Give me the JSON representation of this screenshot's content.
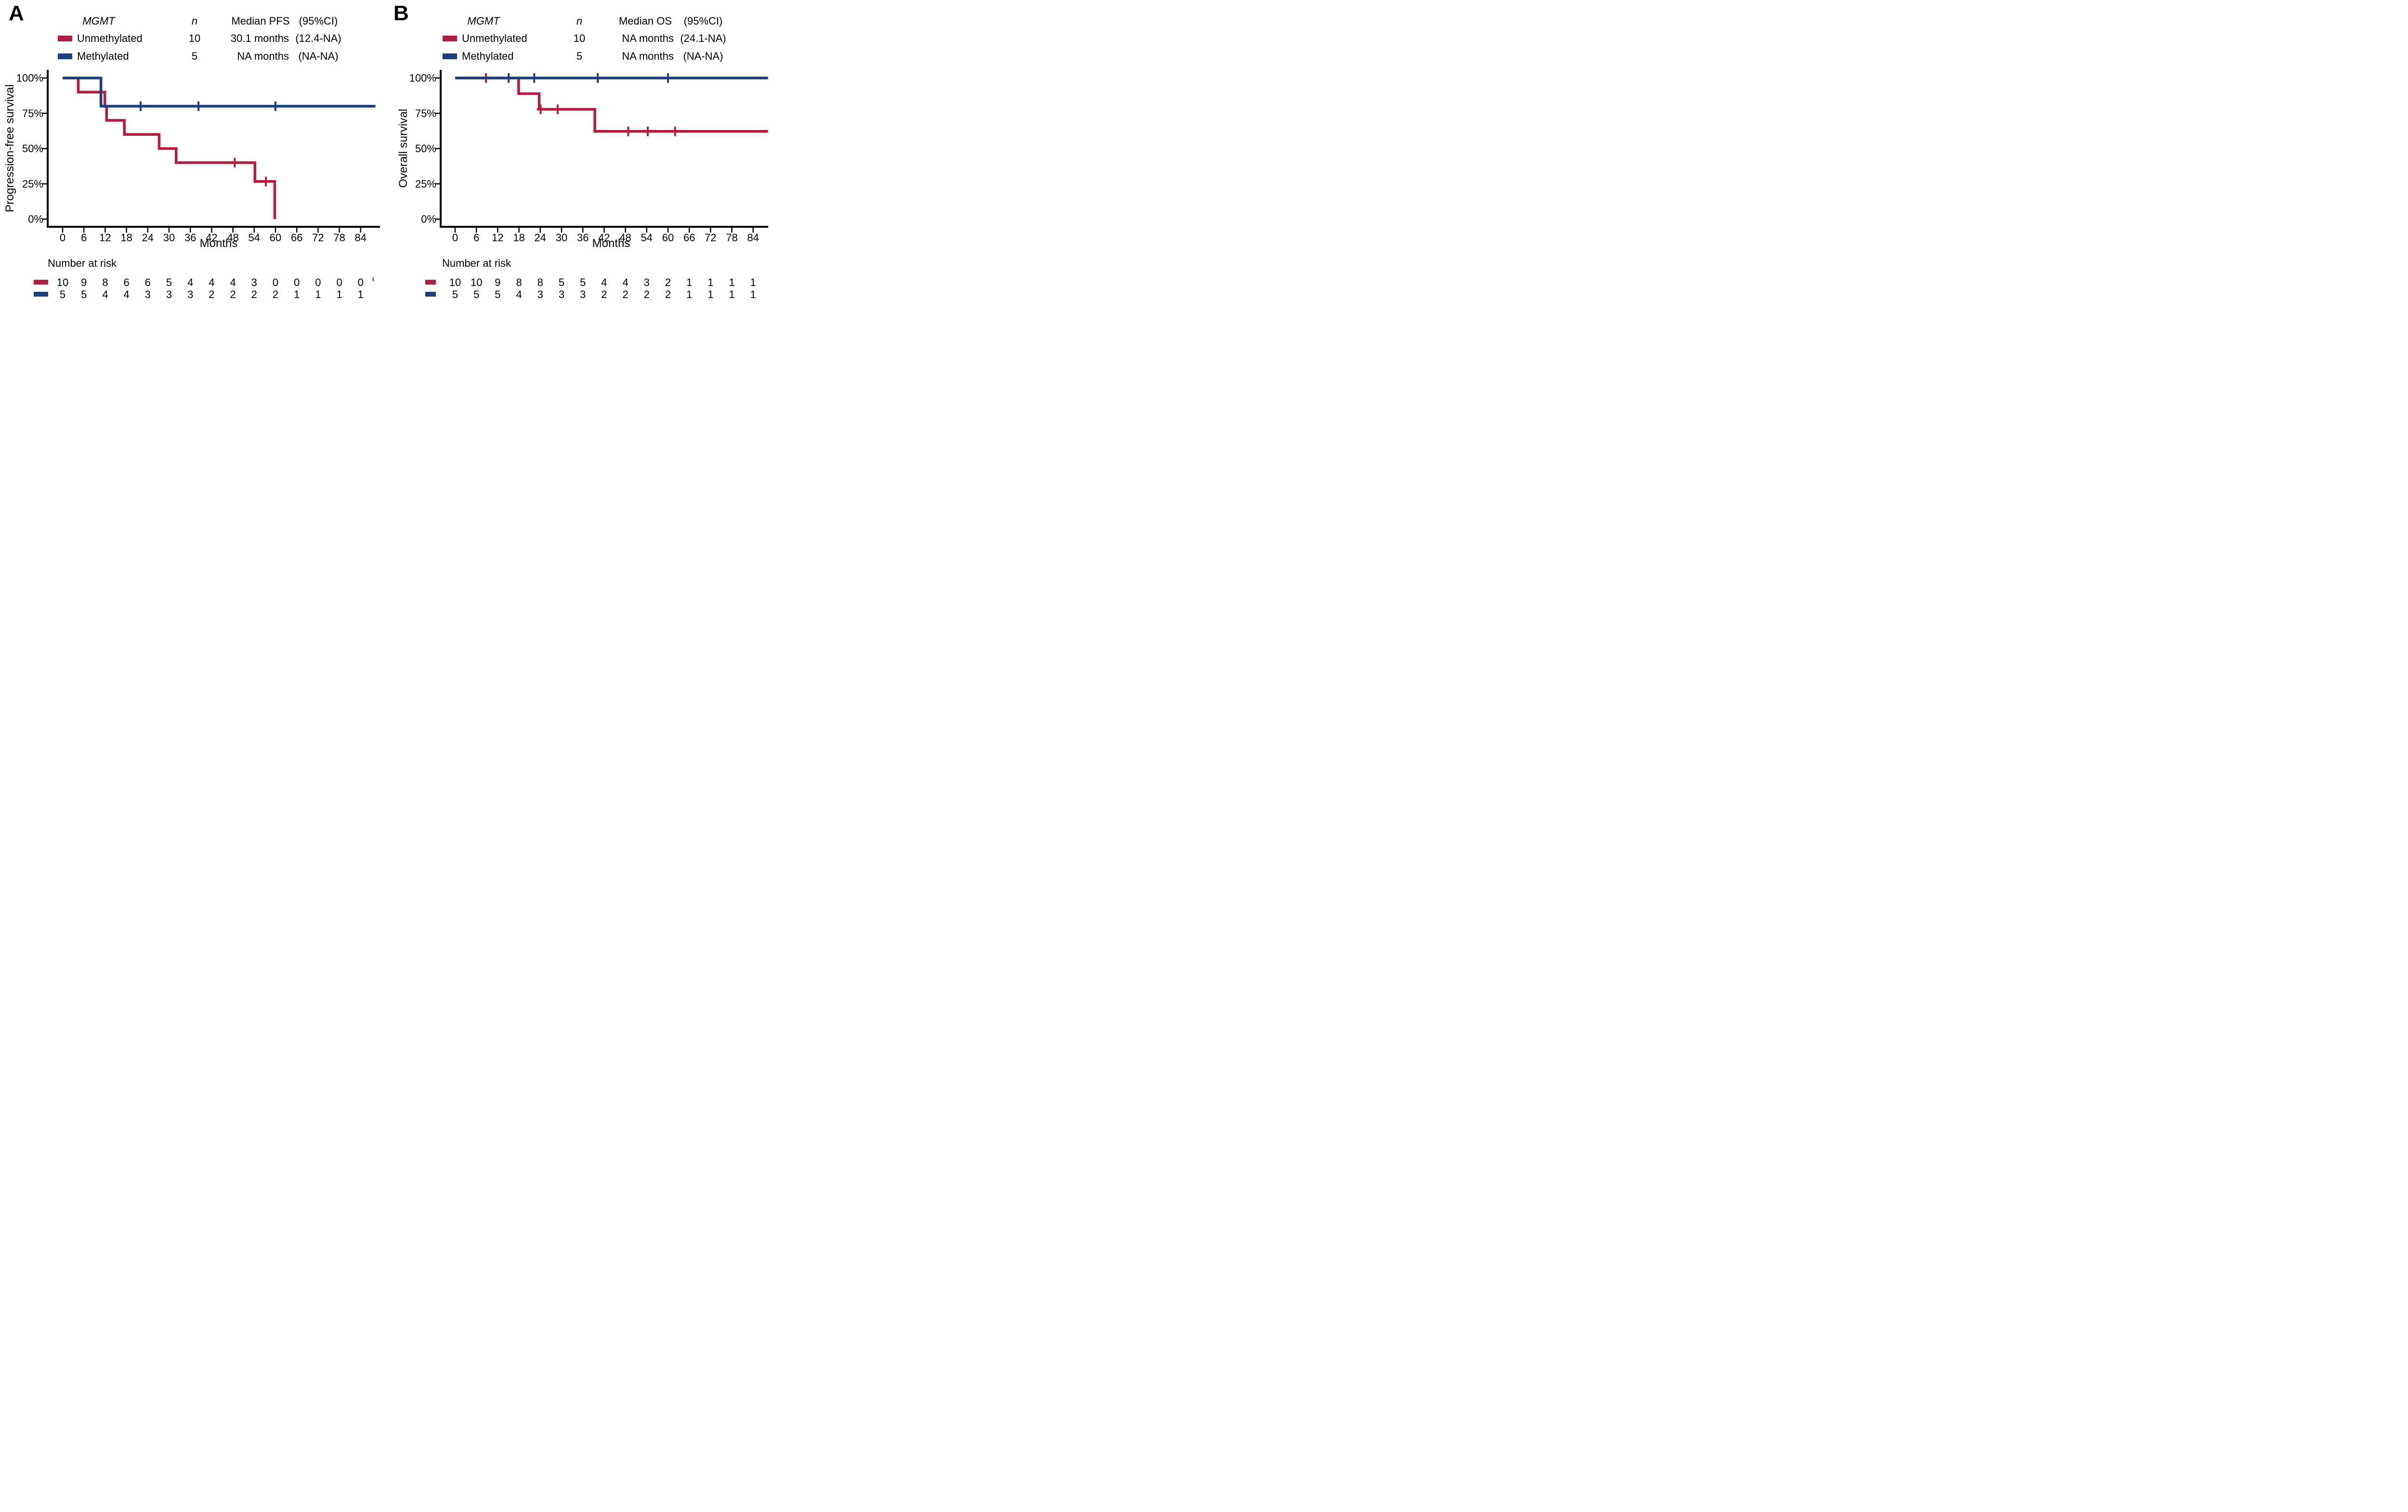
{
  "figure": {
    "background": "#ffffff",
    "axis_color": "#000000"
  },
  "colors": {
    "unmethylated": "#b01e41",
    "methylated": "#1f3e7c"
  },
  "chart_data": [
    {
      "type": "line",
      "subtype": "kaplan-meier-step",
      "panel_label": "A",
      "ylabel": "Progression-free survival",
      "xlabel": "Months",
      "xlim": [
        0,
        88
      ],
      "ylim": [
        0,
        100
      ],
      "grid": false,
      "legend_position": "top",
      "xticks": [
        0,
        6,
        12,
        18,
        24,
        30,
        36,
        42,
        48,
        54,
        60,
        66,
        72,
        78,
        84
      ],
      "yticks": [
        {
          "value": 100,
          "label": "100%"
        },
        {
          "value": 75,
          "label": "75%"
        },
        {
          "value": 50,
          "label": "50%"
        },
        {
          "value": 25,
          "label": "25%"
        },
        {
          "value": 0,
          "label": "0%"
        }
      ],
      "legend": {
        "header": {
          "gene": "MGMT",
          "n": "n",
          "median": "Median PFS",
          "ci": "(95%CI)"
        },
        "rows": [
          {
            "key": "unmethylated",
            "name": "Unmethylated",
            "n": "10",
            "median": "30.1 months",
            "ci": "(12.4-NA)"
          },
          {
            "key": "methylated",
            "name": "Methylated",
            "n": "5",
            "median": "NA months",
            "ci": "(NA-NA)"
          }
        ]
      },
      "series": [
        {
          "key": "unmethylated",
          "name": "Unmethylated",
          "color": "#b01e41",
          "steps": [
            [
              0,
              100
            ],
            [
              4.4,
              90
            ],
            [
              11.9,
              80
            ],
            [
              12.4,
              70
            ],
            [
              17.4,
              60
            ],
            [
              27.2,
              50
            ],
            [
              32,
              40
            ],
            [
              54.2,
              26.7
            ],
            [
              59.8,
              0
            ]
          ],
          "censors": [
            [
              48.5,
              40
            ],
            [
              57.3,
              26.7
            ]
          ],
          "end_time": 59.8
        },
        {
          "key": "methylated",
          "name": "Methylated",
          "color": "#1f3e7c",
          "steps": [
            [
              0,
              100
            ],
            [
              10.8,
              80
            ]
          ],
          "censors": [
            [
              22,
              80
            ],
            [
              38.3,
              80
            ],
            [
              60,
              80
            ]
          ],
          "end_time": 88.2
        }
      ],
      "risk_table": {
        "title": "Number at risk",
        "times": [
          0,
          6,
          12,
          18,
          24,
          30,
          36,
          42,
          48,
          54,
          60,
          66,
          72,
          78,
          84
        ],
        "rows": [
          {
            "key": "unmethylated",
            "values": [
              10,
              9,
              8,
              6,
              6,
              5,
              4,
              4,
              4,
              3,
              0,
              0,
              0,
              0,
              0
            ]
          },
          {
            "key": "methylated",
            "values": [
              5,
              5,
              4,
              4,
              3,
              3,
              3,
              2,
              2,
              2,
              2,
              1,
              1,
              1,
              1
            ]
          }
        ],
        "edge_clipped_mark": true
      }
    },
    {
      "type": "line",
      "subtype": "kaplan-meier-step",
      "panel_label": "B",
      "ylabel": "Overall survival",
      "xlabel": "Months",
      "xlim": [
        0,
        88
      ],
      "ylim": [
        0,
        100
      ],
      "grid": false,
      "legend_position": "top",
      "xticks": [
        0,
        6,
        12,
        18,
        24,
        30,
        36,
        42,
        48,
        54,
        60,
        66,
        72,
        78,
        84
      ],
      "yticks": [
        {
          "value": 100,
          "label": "100%"
        },
        {
          "value": 75,
          "label": "75%"
        },
        {
          "value": 50,
          "label": "50%"
        },
        {
          "value": 25,
          "label": "25%"
        },
        {
          "value": 0,
          "label": "0%"
        }
      ],
      "legend": {
        "header": {
          "gene": "MGMT",
          "n": "n",
          "median": "Median OS",
          "ci": "(95%CI)"
        },
        "rows": [
          {
            "key": "unmethylated",
            "name": "Unmethylated",
            "n": "10",
            "median": "NA months",
            "ci": "(24.1-NA)"
          },
          {
            "key": "methylated",
            "name": "Methylated",
            "n": "5",
            "median": "NA months",
            "ci": "(NA-NA)"
          }
        ]
      },
      "series": [
        {
          "key": "unmethylated",
          "name": "Unmethylated",
          "color": "#b01e41",
          "steps": [
            [
              0,
              100
            ],
            [
              17.9,
              88.9
            ],
            [
              23.7,
              77.8
            ],
            [
              39.4,
              62.2
            ]
          ],
          "censors": [
            [
              8.7,
              100
            ],
            [
              24.1,
              77.8
            ],
            [
              28.9,
              77.8
            ],
            [
              48.8,
              62.2
            ],
            [
              54.3,
              62.2
            ],
            [
              62,
              62.2
            ]
          ],
          "end_time": 88.2
        },
        {
          "key": "methylated",
          "name": "Methylated",
          "color": "#1f3e7c",
          "steps": [
            [
              0,
              100
            ]
          ],
          "censors": [
            [
              15.1,
              100
            ],
            [
              22.3,
              100
            ],
            [
              40.2,
              100
            ],
            [
              60,
              100
            ]
          ],
          "end_time": 88.2
        }
      ],
      "risk_table": {
        "title": "Number at risk",
        "times": [
          0,
          6,
          12,
          18,
          24,
          30,
          36,
          42,
          48,
          54,
          60,
          66,
          72,
          78,
          84
        ],
        "rows": [
          {
            "key": "unmethylated",
            "values": [
              10,
              10,
              9,
              8,
              8,
              5,
              5,
              4,
              4,
              3,
              2,
              1,
              1,
              1,
              1
            ]
          },
          {
            "key": "methylated",
            "values": [
              5,
              5,
              5,
              4,
              3,
              3,
              3,
              2,
              2,
              2,
              2,
              1,
              1,
              1,
              1
            ]
          }
        ],
        "edge_clipped_mark": false
      }
    }
  ]
}
